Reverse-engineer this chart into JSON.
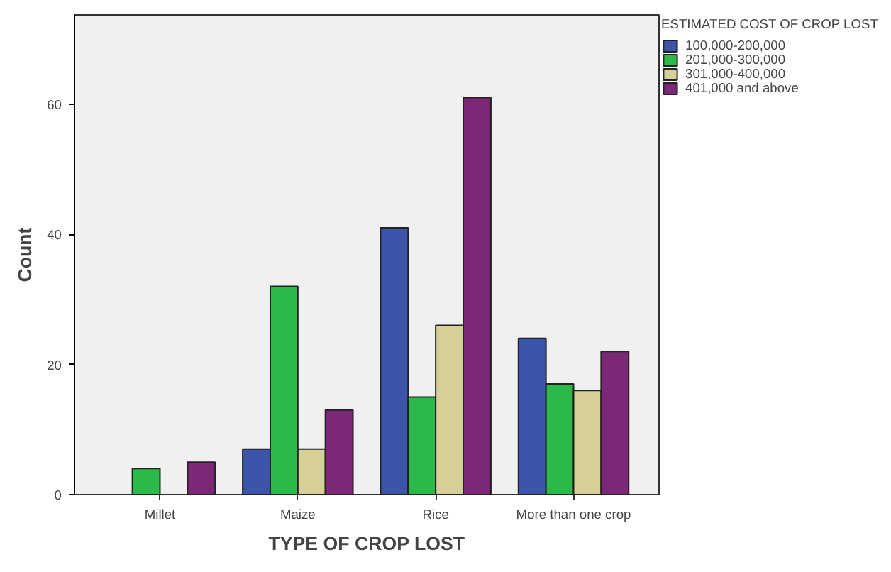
{
  "chart_data": {
    "type": "bar",
    "xlabel": "TYPE OF CROP LOST",
    "ylabel": "Count",
    "legend_title": "ESTIMATED COST OF CROP LOST",
    "categories": [
      "Millet",
      "Maize",
      "Rice",
      "More than one crop"
    ],
    "series": [
      {
        "name": "100,000-200,000",
        "color": "#3c55a8",
        "values": [
          null,
          7,
          41,
          24
        ]
      },
      {
        "name": "201,000-300,000",
        "color": "#2db84a",
        "values": [
          4,
          32,
          15,
          17
        ]
      },
      {
        "name": "301,000-400,000",
        "color": "#d6d098",
        "values": [
          null,
          7,
          26,
          16
        ]
      },
      {
        "name": "401,000 and above",
        "color": "#7d2777",
        "values": [
          5,
          13,
          61,
          22
        ]
      }
    ],
    "ylim": [
      0,
      73.7
    ],
    "yticks": [
      0,
      20,
      40,
      60
    ],
    "grid": false,
    "legend": "top right"
  }
}
